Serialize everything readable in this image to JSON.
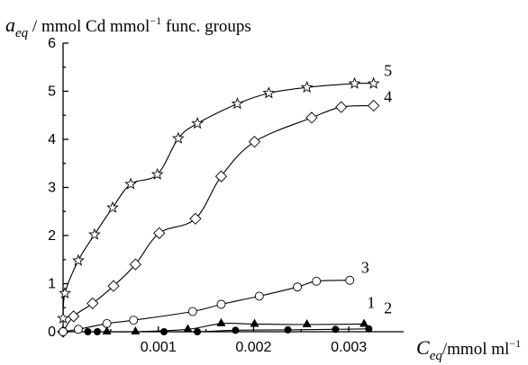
{
  "chart_data": {
    "type": "scatter",
    "ylabel": {
      "symbol": "a",
      "subscript": "eq",
      "rest": " / mmol Cd mmol",
      "sup": "−1",
      "tail": " func. groups"
    },
    "xlabel": {
      "symbol": "C",
      "subscript": "eq",
      "rest": "/mmol ml",
      "sup": "−1"
    },
    "xlim": [
      0,
      0.0035
    ],
    "ylim": [
      0,
      6
    ],
    "x_ticks": [
      0.001,
      0.002,
      0.003
    ],
    "x_tick_labels": [
      "0.001",
      "0.002",
      "0.003"
    ],
    "y_ticks": [
      0,
      1,
      2,
      3,
      4,
      5,
      6
    ],
    "y_tick_labels": [
      "0",
      "1",
      "2",
      "3",
      "4",
      "5",
      "6"
    ],
    "grid": false,
    "series": [
      {
        "name": "5",
        "marker": "star-open",
        "x": [
          0.0,
          2e-05,
          0.00016,
          0.00033,
          0.00052,
          0.00071,
          0.00099,
          0.00121,
          0.00141,
          0.00183,
          0.00216,
          0.00256,
          0.00306,
          0.00326
        ],
        "y": [
          0.28,
          0.8,
          1.48,
          2.02,
          2.58,
          3.07,
          3.27,
          4.02,
          4.33,
          4.74,
          4.96,
          5.08,
          5.16,
          5.16
        ]
      },
      {
        "name": "4",
        "marker": "diamond-open",
        "x": [
          0.0,
          0.00011,
          0.00031,
          0.00053,
          0.00076,
          0.00101,
          0.00139,
          0.00166,
          0.00201,
          0.00261,
          0.00292,
          0.00326
        ],
        "y": [
          0.0,
          0.32,
          0.59,
          0.95,
          1.4,
          2.05,
          2.35,
          3.23,
          3.95,
          4.45,
          4.67,
          4.7
        ]
      },
      {
        "name": "3",
        "marker": "circle-open",
        "x": [
          0.0,
          0.00016,
          0.00046,
          0.00074,
          0.00136,
          0.00166,
          0.00206,
          0.00246,
          0.00266,
          0.00301
        ],
        "y": [
          0.0,
          0.05,
          0.17,
          0.24,
          0.42,
          0.57,
          0.74,
          0.93,
          1.05,
          1.07
        ]
      },
      {
        "name": "1",
        "marker": "triangle-filled",
        "x": [
          0.00046,
          0.00076,
          0.00131,
          0.00166,
          0.00201,
          0.00256,
          0.00316
        ],
        "y": [
          0.0,
          0.0,
          0.05,
          0.17,
          0.16,
          0.15,
          0.16
        ]
      },
      {
        "name": "2",
        "marker": "circle-filled",
        "x": [
          0.00026,
          0.00036,
          0.00106,
          0.00141,
          0.00181,
          0.00236,
          0.00286,
          0.00321
        ],
        "y": [
          0.0,
          0.0,
          0.0,
          0.0,
          0.03,
          0.04,
          0.05,
          0.06
        ]
      }
    ]
  }
}
